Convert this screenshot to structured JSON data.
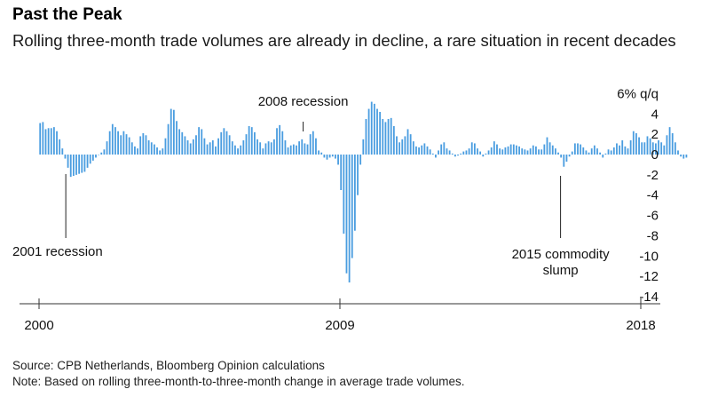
{
  "title": "Past the Peak",
  "subtitle": "Rolling three-month trade volumes are already in decline, a rare situation in recent decades",
  "source": "Source: CPB Netherlands, Bloomberg Opinion calculations",
  "note": "Note: Based on rolling three-month-to-three-month change in average trade volumes.",
  "colors": {
    "bar": "#4a9de0",
    "axis": "#333333",
    "annotation": "#222222"
  },
  "chart_data": {
    "type": "bar",
    "ylim": [
      -14,
      6
    ],
    "ylabel": "6% q/q",
    "y_ticks": [
      4,
      2,
      0,
      -2,
      -4,
      -6,
      -8,
      -10,
      -12,
      -14
    ],
    "x_tick_labels": [
      {
        "label": "2000",
        "year": 2000
      },
      {
        "label": "2009",
        "year": 2009
      },
      {
        "label": "2018",
        "year": 2018
      }
    ],
    "annotations": [
      {
        "text": "2001 recession",
        "year": 2000.8
      },
      {
        "text": "2008 recession",
        "year": 2007.9
      },
      {
        "text": "2015 commodity slump",
        "lines": [
          "2015 commodity",
          "slump"
        ],
        "year": 2015.6
      }
    ],
    "series": [
      {
        "start": "2000-01",
        "frequency": "monthly",
        "values": [
          3.1,
          3.2,
          2.5,
          2.6,
          2.6,
          2.7,
          2.3,
          1.5,
          0.6,
          -0.4,
          -1.3,
          -2.2,
          -2.1,
          -2.0,
          -1.9,
          -1.8,
          -1.7,
          -1.3,
          -0.9,
          -0.6,
          -0.3,
          0.0,
          0.2,
          0.5,
          1.3,
          2.3,
          3.0,
          2.7,
          2.3,
          1.9,
          2.3,
          2.0,
          1.7,
          1.2,
          0.8,
          0.6,
          1.8,
          2.1,
          1.9,
          1.4,
          1.2,
          1.0,
          0.7,
          0.4,
          0.6,
          1.6,
          3.0,
          4.5,
          4.4,
          3.3,
          2.5,
          2.2,
          1.8,
          1.4,
          1.1,
          1.5,
          1.9,
          2.7,
          2.5,
          1.6,
          1.0,
          1.2,
          1.4,
          0.8,
          1.6,
          2.2,
          2.6,
          2.3,
          1.9,
          1.3,
          0.9,
          0.6,
          0.9,
          1.4,
          2.0,
          2.8,
          2.7,
          2.2,
          1.5,
          1.2,
          0.6,
          1.1,
          1.3,
          1.2,
          1.5,
          2.6,
          2.9,
          2.3,
          1.4,
          0.7,
          0.9,
          1.0,
          0.9,
          1.3,
          1.5,
          1.1,
          1.0,
          2.0,
          2.3,
          1.6,
          0.4,
          0.2,
          -0.3,
          -0.5,
          -0.3,
          -0.2,
          -0.4,
          -1.0,
          -3.5,
          -7.8,
          -11.7,
          -12.6,
          -10.2,
          -7.5,
          -4.0,
          -1.0,
          1.5,
          3.5,
          4.5,
          5.2,
          5.0,
          4.5,
          4.2,
          3.5,
          3.2,
          3.5,
          3.6,
          2.8,
          1.8,
          1.2,
          1.5,
          1.8,
          2.5,
          2.0,
          1.3,
          0.8,
          0.7,
          0.9,
          1.1,
          0.8,
          0.5,
          0.1,
          -0.3,
          0.4,
          1.0,
          1.2,
          0.6,
          0.4,
          0.1,
          -0.2,
          -0.1,
          0.1,
          0.3,
          0.4,
          0.6,
          1.2,
          1.1,
          0.6,
          0.3,
          -0.2,
          0.1,
          0.4,
          0.7,
          1.3,
          1.0,
          0.6,
          0.5,
          0.7,
          0.8,
          1.0,
          1.0,
          0.9,
          0.8,
          0.6,
          0.5,
          0.4,
          0.6,
          0.9,
          0.8,
          0.5,
          0.5,
          1.0,
          1.7,
          1.2,
          0.9,
          0.6,
          0.2,
          -0.3,
          -1.2,
          -0.7,
          -0.2,
          0.3,
          1.1,
          1.1,
          1.0,
          0.7,
          0.4,
          0.2,
          0.6,
          0.9,
          0.6,
          0.2,
          -0.3,
          0.1,
          0.5,
          0.4,
          0.7,
          1.1,
          0.9,
          1.4,
          0.8,
          0.6,
          1.4,
          2.3,
          2.1,
          1.7,
          1.2,
          1.2,
          1.8,
          1.6,
          1.2,
          1.1,
          1.4,
          1.2,
          0.9,
          1.9,
          2.7,
          2.1,
          1.2,
          0.4,
          -0.2,
          -0.4,
          -0.3
        ]
      }
    ]
  }
}
